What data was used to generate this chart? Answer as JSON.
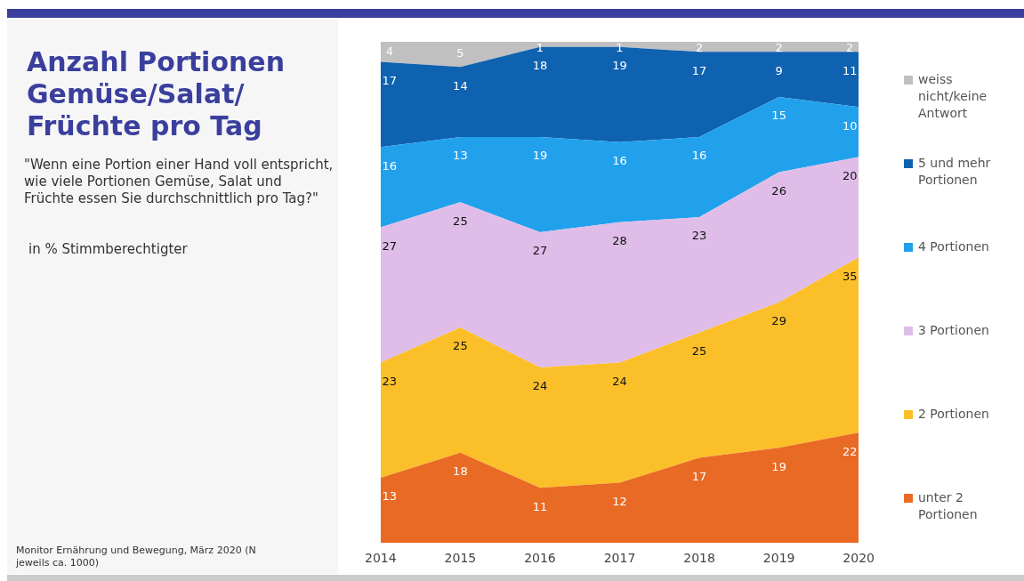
{
  "chart_data": {
    "type": "area",
    "title": "Anzahl Portionen Gemüse/Salat/ Früchte pro Tag",
    "subtitle": "\"Wenn eine Portion einer Hand voll entspricht, wie viele Portionen Gemüse, Salat und Früchte essen Sie durchschnittlich pro Tag?\"",
    "annotations": [
      "in % Stimmberechtigter",
      "Monitor Ernährung und Bewegung, März 2020 (N jeweils ca. 1000)"
    ],
    "categories": [
      "2014",
      "2015",
      "2016",
      "2017",
      "2018",
      "2019",
      "2020"
    ],
    "stacked": true,
    "data_labels": true,
    "legend": "right",
    "grid": false,
    "series": [
      {
        "name": "unter 2 Portionen",
        "color": "#e96a24",
        "values": [
          13,
          18,
          11,
          12,
          17,
          19,
          22
        ]
      },
      {
        "name": "2 Portionen",
        "color": "#fbbf2a",
        "values": [
          23,
          25,
          24,
          24,
          25,
          29,
          35
        ]
      },
      {
        "name": "3 Portionen",
        "color": "#dfbde8",
        "values": [
          27,
          25,
          27,
          28,
          23,
          26,
          20
        ]
      },
      {
        "name": "4 Portionen",
        "color": "#21a1ec",
        "values": [
          16,
          13,
          19,
          16,
          16,
          15,
          10
        ]
      },
      {
        "name": "5 und mehr Portionen",
        "color": "#0f62b0",
        "values": [
          17,
          14,
          18,
          19,
          17,
          9,
          11
        ]
      },
      {
        "name": "weiss nicht/keine Antwort",
        "color": "#c0c0c0",
        "values": [
          4,
          5,
          1,
          1,
          2,
          2,
          2
        ]
      }
    ]
  }
}
